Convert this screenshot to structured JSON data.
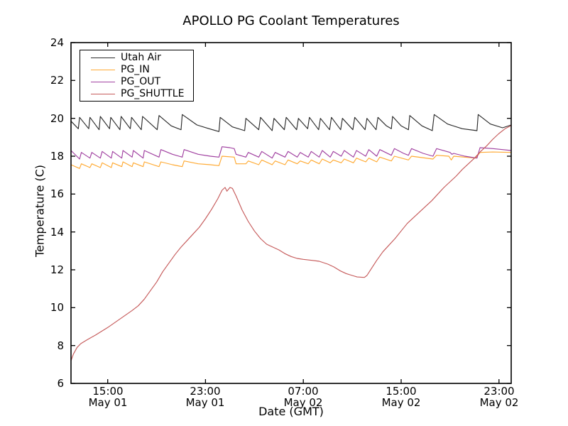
{
  "figure": {
    "title": "APOLLO PG Coolant Temperatures",
    "xlabel": "Date (GMT)",
    "ylabel": "Temperature (C)"
  },
  "chart_data": {
    "type": "line",
    "title": "APOLLO PG Coolant Temperatures",
    "xlabel": "Date (GMT)",
    "ylabel": "Temperature (C)",
    "x_unit_note": "hours from plot left edge; plot spans approx May 01 12:00 GMT to May 02 24:00 GMT",
    "xlim": [
      0,
      36
    ],
    "ylim": [
      6,
      24
    ],
    "grid": false,
    "legend_position": "upper left",
    "yticks": [
      24,
      22,
      20,
      18,
      16,
      14,
      12,
      10,
      8,
      6
    ],
    "xticks": [
      {
        "t": 3,
        "time": "15:00",
        "date": "May 01"
      },
      {
        "t": 11,
        "time": "23:00",
        "date": "May 01"
      },
      {
        "t": 19,
        "time": "07:00",
        "date": "May 02"
      },
      {
        "t": 27,
        "time": "15:00",
        "date": "May 02"
      },
      {
        "t": 35,
        "time": "23:00",
        "date": "May 02"
      }
    ],
    "series": [
      {
        "name": "Utah Air",
        "color": "#2b2b2b",
        "points": [
          [
            0,
            19.85
          ],
          [
            0.6,
            19.45
          ],
          [
            0.7,
            20.05
          ],
          [
            1.45,
            19.45
          ],
          [
            1.55,
            20.05
          ],
          [
            2.3,
            19.4
          ],
          [
            2.4,
            20.1
          ],
          [
            3.15,
            19.45
          ],
          [
            3.25,
            20.05
          ],
          [
            4.0,
            19.4
          ],
          [
            4.1,
            20.1
          ],
          [
            4.85,
            19.45
          ],
          [
            4.95,
            20.05
          ],
          [
            5.75,
            19.4
          ],
          [
            5.85,
            20.1
          ],
          [
            7.05,
            19.4
          ],
          [
            7.2,
            20.15
          ],
          [
            8.2,
            19.6
          ],
          [
            9.0,
            19.4
          ],
          [
            9.1,
            20.2
          ],
          [
            10.3,
            19.65
          ],
          [
            11.3,
            19.45
          ],
          [
            12.1,
            19.3
          ],
          [
            12.2,
            20.05
          ],
          [
            13.2,
            19.55
          ],
          [
            14.2,
            19.35
          ],
          [
            14.3,
            20.0
          ],
          [
            15.35,
            19.4
          ],
          [
            15.5,
            20.05
          ],
          [
            16.45,
            19.35
          ],
          [
            16.6,
            20.0
          ],
          [
            17.45,
            19.4
          ],
          [
            17.6,
            20.05
          ],
          [
            18.45,
            19.4
          ],
          [
            18.6,
            20.0
          ],
          [
            19.35,
            19.45
          ],
          [
            19.5,
            20.05
          ],
          [
            20.25,
            19.4
          ],
          [
            20.4,
            20.0
          ],
          [
            21.15,
            19.4
          ],
          [
            21.3,
            20.05
          ],
          [
            22.05,
            19.4
          ],
          [
            22.2,
            20.0
          ],
          [
            23.05,
            19.4
          ],
          [
            23.2,
            20.05
          ],
          [
            24.05,
            19.4
          ],
          [
            24.2,
            20.0
          ],
          [
            24.95,
            19.4
          ],
          [
            25.1,
            20.05
          ],
          [
            25.8,
            19.6
          ],
          [
            26.2,
            19.45
          ],
          [
            26.3,
            20.1
          ],
          [
            27.0,
            19.6
          ],
          [
            27.6,
            19.4
          ],
          [
            27.7,
            20.15
          ],
          [
            28.7,
            19.6
          ],
          [
            29.55,
            19.35
          ],
          [
            29.7,
            20.2
          ],
          [
            30.8,
            19.7
          ],
          [
            32.0,
            19.45
          ],
          [
            33.2,
            19.35
          ],
          [
            33.3,
            20.2
          ],
          [
            34.3,
            19.7
          ],
          [
            35.3,
            19.5
          ],
          [
            36,
            19.65
          ]
        ]
      },
      {
        "name": "PG_IN",
        "color": "#ffaa33",
        "points": [
          [
            0,
            17.55
          ],
          [
            0.7,
            17.35
          ],
          [
            0.85,
            17.6
          ],
          [
            1.55,
            17.4
          ],
          [
            1.7,
            17.6
          ],
          [
            2.4,
            17.4
          ],
          [
            2.55,
            17.65
          ],
          [
            3.3,
            17.4
          ],
          [
            3.4,
            17.65
          ],
          [
            4.15,
            17.45
          ],
          [
            4.25,
            17.7
          ],
          [
            5.0,
            17.45
          ],
          [
            5.1,
            17.65
          ],
          [
            5.9,
            17.45
          ],
          [
            6.0,
            17.7
          ],
          [
            7.2,
            17.45
          ],
          [
            7.35,
            17.7
          ],
          [
            8.3,
            17.55
          ],
          [
            9.1,
            17.45
          ],
          [
            9.25,
            17.75
          ],
          [
            10.4,
            17.6
          ],
          [
            11.4,
            17.55
          ],
          [
            12.1,
            17.5
          ],
          [
            12.35,
            18.0
          ],
          [
            13.35,
            17.95
          ],
          [
            13.5,
            17.6
          ],
          [
            14.3,
            17.6
          ],
          [
            14.5,
            17.75
          ],
          [
            15.35,
            17.55
          ],
          [
            15.6,
            17.8
          ],
          [
            16.45,
            17.55
          ],
          [
            16.7,
            17.75
          ],
          [
            17.5,
            17.55
          ],
          [
            17.75,
            17.8
          ],
          [
            18.5,
            17.6
          ],
          [
            18.75,
            17.75
          ],
          [
            19.4,
            17.6
          ],
          [
            19.65,
            17.8
          ],
          [
            20.3,
            17.6
          ],
          [
            20.55,
            17.85
          ],
          [
            21.2,
            17.65
          ],
          [
            21.45,
            17.8
          ],
          [
            22.1,
            17.65
          ],
          [
            22.35,
            17.85
          ],
          [
            23.1,
            17.65
          ],
          [
            23.35,
            17.9
          ],
          [
            24.1,
            17.7
          ],
          [
            24.35,
            17.9
          ],
          [
            25.0,
            17.7
          ],
          [
            25.25,
            17.95
          ],
          [
            26.2,
            17.75
          ],
          [
            26.45,
            18.0
          ],
          [
            27.6,
            17.8
          ],
          [
            27.85,
            18.0
          ],
          [
            29.6,
            17.85
          ],
          [
            29.9,
            18.05
          ],
          [
            30.9,
            18.0
          ],
          [
            31.1,
            17.8
          ],
          [
            31.3,
            18.0
          ],
          [
            33.1,
            17.9
          ],
          [
            33.45,
            18.2
          ],
          [
            34.5,
            18.22
          ],
          [
            36,
            18.2
          ]
        ]
      },
      {
        "name": "PG_OUT",
        "color": "#a040a0",
        "points": [
          [
            0,
            18.3
          ],
          [
            0.7,
            17.85
          ],
          [
            0.85,
            18.2
          ],
          [
            1.55,
            17.9
          ],
          [
            1.7,
            18.2
          ],
          [
            2.4,
            17.9
          ],
          [
            2.55,
            18.25
          ],
          [
            3.3,
            17.9
          ],
          [
            3.4,
            18.25
          ],
          [
            4.15,
            17.9
          ],
          [
            4.25,
            18.3
          ],
          [
            5.0,
            17.95
          ],
          [
            5.1,
            18.3
          ],
          [
            5.9,
            17.9
          ],
          [
            6.0,
            18.3
          ],
          [
            7.2,
            17.95
          ],
          [
            7.35,
            18.35
          ],
          [
            8.3,
            18.1
          ],
          [
            9.1,
            17.95
          ],
          [
            9.25,
            18.35
          ],
          [
            10.4,
            18.1
          ],
          [
            11.4,
            18.0
          ],
          [
            12.1,
            17.95
          ],
          [
            12.35,
            18.5
          ],
          [
            13.0,
            18.45
          ],
          [
            13.35,
            18.4
          ],
          [
            13.5,
            18.1
          ],
          [
            14.3,
            17.95
          ],
          [
            14.5,
            18.2
          ],
          [
            15.35,
            17.95
          ],
          [
            15.6,
            18.25
          ],
          [
            16.45,
            17.9
          ],
          [
            16.7,
            18.2
          ],
          [
            17.5,
            17.95
          ],
          [
            17.75,
            18.25
          ],
          [
            18.5,
            17.95
          ],
          [
            18.75,
            18.2
          ],
          [
            19.4,
            17.95
          ],
          [
            19.65,
            18.25
          ],
          [
            20.3,
            17.95
          ],
          [
            20.55,
            18.3
          ],
          [
            21.2,
            17.95
          ],
          [
            21.45,
            18.25
          ],
          [
            22.1,
            18.0
          ],
          [
            22.35,
            18.3
          ],
          [
            23.1,
            17.95
          ],
          [
            23.35,
            18.3
          ],
          [
            24.1,
            18.0
          ],
          [
            24.35,
            18.35
          ],
          [
            25.0,
            18.0
          ],
          [
            25.25,
            18.35
          ],
          [
            26.2,
            18.05
          ],
          [
            26.45,
            18.4
          ],
          [
            27.2,
            18.15
          ],
          [
            27.6,
            18.05
          ],
          [
            27.85,
            18.4
          ],
          [
            28.8,
            18.15
          ],
          [
            29.6,
            18.0
          ],
          [
            29.9,
            18.4
          ],
          [
            31.0,
            18.2
          ],
          [
            31.15,
            18.1
          ],
          [
            31.3,
            18.15
          ],
          [
            32.2,
            18.0
          ],
          [
            33.2,
            17.9
          ],
          [
            33.45,
            18.45
          ],
          [
            34.5,
            18.4
          ],
          [
            35.3,
            18.35
          ],
          [
            36,
            18.3
          ]
        ]
      },
      {
        "name": "PG_SHUTTLE",
        "color": "#c65b5b",
        "points": [
          [
            0,
            7.2
          ],
          [
            0.2,
            7.55
          ],
          [
            0.5,
            7.9
          ],
          [
            0.8,
            8.1
          ],
          [
            1.3,
            8.3
          ],
          [
            2,
            8.55
          ],
          [
            3,
            8.95
          ],
          [
            4,
            9.4
          ],
          [
            5,
            9.85
          ],
          [
            5.5,
            10.1
          ],
          [
            6,
            10.45
          ],
          [
            6.5,
            10.9
          ],
          [
            7,
            11.35
          ],
          [
            7.5,
            11.9
          ],
          [
            8,
            12.35
          ],
          [
            8.5,
            12.8
          ],
          [
            9,
            13.2
          ],
          [
            9.5,
            13.55
          ],
          [
            10,
            13.9
          ],
          [
            10.5,
            14.25
          ],
          [
            11,
            14.7
          ],
          [
            11.5,
            15.2
          ],
          [
            12,
            15.75
          ],
          [
            12.35,
            16.2
          ],
          [
            12.6,
            16.35
          ],
          [
            12.75,
            16.15
          ],
          [
            13,
            16.35
          ],
          [
            13.2,
            16.3
          ],
          [
            13.5,
            15.9
          ],
          [
            14,
            15.15
          ],
          [
            14.5,
            14.55
          ],
          [
            15,
            14.05
          ],
          [
            15.5,
            13.65
          ],
          [
            16,
            13.35
          ],
          [
            16.5,
            13.2
          ],
          [
            17,
            13.05
          ],
          [
            17.5,
            12.85
          ],
          [
            18,
            12.7
          ],
          [
            18.5,
            12.6
          ],
          [
            19,
            12.55
          ],
          [
            19.7,
            12.5
          ],
          [
            20.3,
            12.45
          ],
          [
            21,
            12.3
          ],
          [
            21.5,
            12.15
          ],
          [
            22,
            11.95
          ],
          [
            22.5,
            11.8
          ],
          [
            23,
            11.7
          ],
          [
            23.4,
            11.62
          ],
          [
            24,
            11.6
          ],
          [
            24.2,
            11.7
          ],
          [
            24.6,
            12.1
          ],
          [
            25,
            12.5
          ],
          [
            25.5,
            12.95
          ],
          [
            26,
            13.3
          ],
          [
            26.5,
            13.65
          ],
          [
            27,
            14.05
          ],
          [
            27.5,
            14.45
          ],
          [
            28,
            14.75
          ],
          [
            28.5,
            15.05
          ],
          [
            29,
            15.35
          ],
          [
            29.5,
            15.65
          ],
          [
            30,
            16.0
          ],
          [
            30.5,
            16.35
          ],
          [
            31,
            16.65
          ],
          [
            31.5,
            16.95
          ],
          [
            32,
            17.3
          ],
          [
            32.5,
            17.6
          ],
          [
            33,
            17.9
          ],
          [
            33.5,
            18.25
          ],
          [
            34,
            18.55
          ],
          [
            34.5,
            18.9
          ],
          [
            35,
            19.2
          ],
          [
            35.5,
            19.45
          ],
          [
            36,
            19.62
          ]
        ]
      }
    ]
  },
  "legend": {
    "entries": [
      {
        "label": "Utah Air"
      },
      {
        "label": "PG_IN"
      },
      {
        "label": "PG_OUT"
      },
      {
        "label": "PG_SHUTTLE"
      }
    ]
  }
}
